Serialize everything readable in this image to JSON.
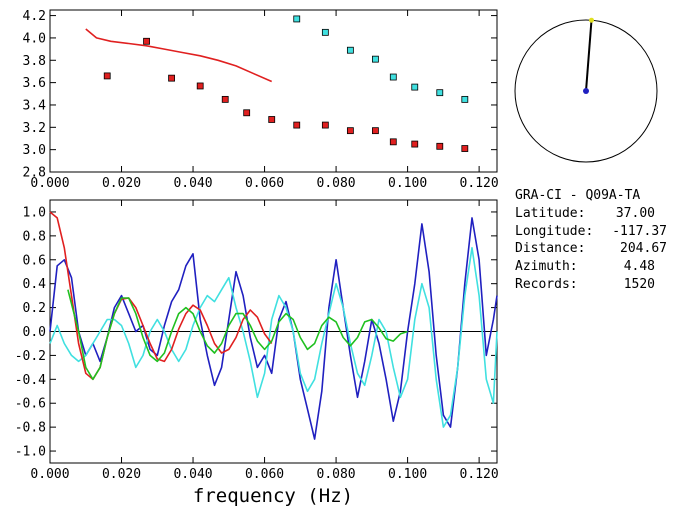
{
  "chart_data": [
    {
      "type": "scatter",
      "title": "",
      "xlabel": "",
      "ylabel": "",
      "xlim": [
        0.0,
        0.125
      ],
      "ylim": [
        2.8,
        4.25
      ],
      "xticks": [
        "0.000",
        "0.020",
        "0.040",
        "0.060",
        "0.080",
        "0.100",
        "0.120"
      ],
      "yticks": [
        "2.8",
        "3.0",
        "3.2",
        "3.4",
        "3.6",
        "3.8",
        "4.0",
        "4.2"
      ],
      "xtick_values": [
        0.0,
        0.02,
        0.04,
        0.06,
        0.08,
        0.1,
        0.12
      ],
      "ytick_values": [
        2.8,
        3.0,
        3.2,
        3.4,
        3.6,
        3.8,
        4.0,
        4.2
      ],
      "series": [
        {
          "color": "#e02020",
          "kind": "points",
          "x": [
            0.016,
            0.027,
            0.034,
            0.042,
            0.049,
            0.055,
            0.062,
            0.069,
            0.077,
            0.084,
            0.091,
            0.096,
            0.102,
            0.109,
            0.116
          ],
          "y": [
            3.66,
            3.97,
            3.64,
            3.57,
            3.45,
            3.33,
            3.27,
            3.22,
            3.22,
            3.17,
            3.17,
            3.07,
            3.05,
            3.03,
            3.01
          ]
        },
        {
          "color": "#40e0e0",
          "kind": "points",
          "x": [
            0.069,
            0.077,
            0.084,
            0.091,
            0.096,
            0.102,
            0.109,
            0.116
          ],
          "y": [
            4.17,
            4.05,
            3.89,
            3.81,
            3.65,
            3.56,
            3.51,
            3.45
          ]
        },
        {
          "color": "#e02020",
          "kind": "line",
          "x": [
            0.01,
            0.013,
            0.017,
            0.022,
            0.027,
            0.032,
            0.037,
            0.042,
            0.047,
            0.052,
            0.057,
            0.062
          ],
          "y": [
            4.08,
            4.0,
            3.97,
            3.95,
            3.93,
            3.9,
            3.87,
            3.84,
            3.8,
            3.75,
            3.68,
            3.61
          ]
        }
      ]
    },
    {
      "type": "line",
      "title": "",
      "xlabel": "frequency (Hz)",
      "ylabel": "",
      "xlim": [
        0.0,
        0.125
      ],
      "ylim": [
        -1.1,
        1.1
      ],
      "xticks": [
        "0.000",
        "0.020",
        "0.040",
        "0.060",
        "0.080",
        "0.100",
        "0.120"
      ],
      "yticks": [
        "-1.0",
        "-0.8",
        "-0.6",
        "-0.4",
        "-0.2",
        "0.0",
        "0.2",
        "0.4",
        "0.6",
        "0.8",
        "1.0"
      ],
      "xtick_values": [
        0.0,
        0.02,
        0.04,
        0.06,
        0.08,
        0.1,
        0.12
      ],
      "ytick_values": [
        -1.0,
        -0.8,
        -0.6,
        -0.4,
        -0.2,
        0.0,
        0.2,
        0.4,
        0.6,
        0.8,
        1.0
      ],
      "series": [
        {
          "color": "#2020c0",
          "x": [
            0.0,
            0.002,
            0.004,
            0.006,
            0.008,
            0.01,
            0.012,
            0.014,
            0.016,
            0.018,
            0.02,
            0.022,
            0.024,
            0.026,
            0.028,
            0.03,
            0.032,
            0.034,
            0.036,
            0.038,
            0.04,
            0.042,
            0.044,
            0.046,
            0.048,
            0.05,
            0.052,
            0.054,
            0.056,
            0.058,
            0.06,
            0.062,
            0.064,
            0.066,
            0.068,
            0.07,
            0.072,
            0.074,
            0.076,
            0.078,
            0.08,
            0.082,
            0.084,
            0.086,
            0.088,
            0.09,
            0.092,
            0.094,
            0.096,
            0.098,
            0.1,
            0.102,
            0.104,
            0.106,
            0.108,
            0.11,
            0.112,
            0.114,
            0.116,
            0.118,
            0.12,
            0.122,
            0.124,
            0.125
          ],
          "y": [
            0.0,
            0.55,
            0.6,
            0.45,
            0.0,
            -0.2,
            -0.1,
            -0.25,
            -0.05,
            0.2,
            0.3,
            0.15,
            0.0,
            0.05,
            -0.15,
            -0.2,
            0.05,
            0.25,
            0.35,
            0.55,
            0.65,
            0.1,
            -0.2,
            -0.45,
            -0.3,
            0.1,
            0.5,
            0.3,
            -0.05,
            -0.3,
            -0.2,
            -0.35,
            0.1,
            0.25,
            0.0,
            -0.4,
            -0.65,
            -0.9,
            -0.5,
            0.2,
            0.6,
            0.2,
            -0.2,
            -0.55,
            -0.25,
            0.1,
            -0.1,
            -0.4,
            -0.75,
            -0.5,
            0.0,
            0.4,
            0.9,
            0.5,
            -0.2,
            -0.7,
            -0.8,
            -0.3,
            0.4,
            0.95,
            0.6,
            -0.2,
            0.1,
            0.3
          ]
        },
        {
          "color": "#40e0e0",
          "x": [
            0.0,
            0.002,
            0.004,
            0.006,
            0.008,
            0.01,
            0.012,
            0.014,
            0.016,
            0.018,
            0.02,
            0.022,
            0.024,
            0.026,
            0.028,
            0.03,
            0.032,
            0.034,
            0.036,
            0.038,
            0.04,
            0.042,
            0.044,
            0.046,
            0.048,
            0.05,
            0.052,
            0.054,
            0.056,
            0.058,
            0.06,
            0.062,
            0.064,
            0.066,
            0.068,
            0.07,
            0.072,
            0.074,
            0.076,
            0.078,
            0.08,
            0.082,
            0.084,
            0.086,
            0.088,
            0.09,
            0.092,
            0.094,
            0.096,
            0.098,
            0.1,
            0.102,
            0.104,
            0.106,
            0.108,
            0.11,
            0.112,
            0.114,
            0.116,
            0.118,
            0.12,
            0.122,
            0.124,
            0.125
          ],
          "y": [
            -0.1,
            0.05,
            -0.1,
            -0.2,
            -0.25,
            -0.2,
            -0.1,
            0.0,
            0.1,
            0.1,
            0.05,
            -0.1,
            -0.3,
            -0.2,
            0.0,
            0.1,
            0.0,
            -0.15,
            -0.25,
            -0.15,
            0.05,
            0.2,
            0.3,
            0.25,
            0.35,
            0.45,
            0.2,
            0.0,
            -0.25,
            -0.55,
            -0.35,
            0.1,
            0.3,
            0.2,
            0.0,
            -0.35,
            -0.5,
            -0.4,
            -0.1,
            0.15,
            0.4,
            0.2,
            -0.1,
            -0.35,
            -0.45,
            -0.2,
            0.1,
            0.0,
            -0.3,
            -0.55,
            -0.4,
            0.1,
            0.4,
            0.2,
            -0.4,
            -0.8,
            -0.7,
            -0.3,
            0.3,
            0.7,
            0.3,
            -0.4,
            -0.6,
            0.0
          ]
        },
        {
          "color": "#e02020",
          "x": [
            0.0,
            0.002,
            0.004,
            0.006,
            0.008,
            0.01,
            0.012,
            0.014,
            0.016,
            0.018,
            0.02,
            0.022,
            0.024,
            0.026,
            0.028,
            0.03,
            0.032,
            0.034,
            0.036,
            0.038,
            0.04,
            0.042,
            0.044,
            0.046,
            0.048,
            0.05,
            0.052,
            0.054,
            0.056,
            0.058,
            0.06,
            0.062
          ],
          "y": [
            1.0,
            0.95,
            0.7,
            0.3,
            -0.1,
            -0.35,
            -0.4,
            -0.3,
            -0.05,
            0.15,
            0.27,
            0.28,
            0.2,
            0.05,
            -0.1,
            -0.23,
            -0.25,
            -0.15,
            0.02,
            0.15,
            0.22,
            0.18,
            0.05,
            -0.1,
            -0.18,
            -0.15,
            -0.05,
            0.1,
            0.18,
            0.12,
            -0.02,
            -0.1
          ]
        },
        {
          "color": "#20c020",
          "x": [
            0.005,
            0.008,
            0.01,
            0.012,
            0.014,
            0.016,
            0.018,
            0.02,
            0.022,
            0.024,
            0.026,
            0.028,
            0.03,
            0.032,
            0.034,
            0.036,
            0.038,
            0.04,
            0.042,
            0.044,
            0.046,
            0.048,
            0.05,
            0.052,
            0.054,
            0.056,
            0.058,
            0.06,
            0.062,
            0.064,
            0.066,
            0.068,
            0.07,
            0.072,
            0.074,
            0.076,
            0.078,
            0.08,
            0.082,
            0.084,
            0.086,
            0.088,
            0.09,
            0.092,
            0.094,
            0.096,
            0.098,
            0.1
          ],
          "y": [
            0.35,
            0.0,
            -0.3,
            -0.4,
            -0.3,
            -0.05,
            0.15,
            0.28,
            0.28,
            0.15,
            -0.05,
            -0.2,
            -0.25,
            -0.18,
            0.0,
            0.15,
            0.2,
            0.15,
            0.0,
            -0.12,
            -0.18,
            -0.1,
            0.05,
            0.15,
            0.15,
            0.05,
            -0.08,
            -0.15,
            -0.08,
            0.08,
            0.15,
            0.1,
            -0.05,
            -0.15,
            -0.1,
            0.05,
            0.12,
            0.08,
            -0.05,
            -0.12,
            -0.05,
            0.08,
            0.1,
            0.03,
            -0.06,
            -0.08,
            -0.02,
            0.0
          ]
        }
      ]
    }
  ],
  "station": {
    "title": "GRA-CI - Q09A-TA",
    "rows": [
      {
        "label": "Latitude:",
        "value": "37.00"
      },
      {
        "label": "Longitude:",
        "value": "-117.37"
      },
      {
        "label": "Distance:",
        "value": "204.67"
      },
      {
        "label": "Azimuth:",
        "value": "4.48"
      },
      {
        "label": "Records:",
        "value": "1520"
      }
    ],
    "azimuth_deg": 4.48,
    "marker_color": "#e0e020",
    "center_color": "#2020c0"
  }
}
